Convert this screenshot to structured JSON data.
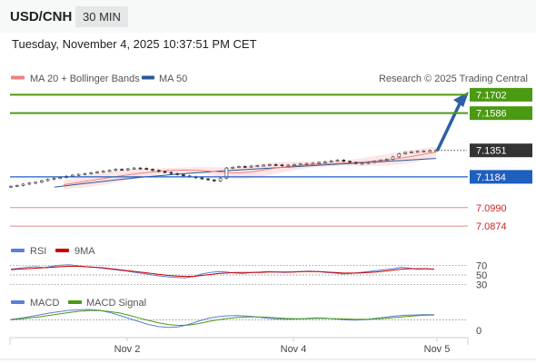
{
  "header": {
    "pair": "USD/CNH",
    "timeframe": "30 MIN"
  },
  "datetime": "Tuesday, November 4, 2025 10:37:51 PM CET",
  "legend": {
    "ma20_bb": "MA 20 + Bollinger Bands",
    "ma50": "MA 50",
    "credit": "Research © 2025 Trading Central"
  },
  "colors": {
    "resistance": "#4a9a12",
    "support": "#1f5fbf",
    "weak_level": "#e88a8a",
    "price": "#333333",
    "arrow": "#2e5fa8",
    "ma20": "#f08080",
    "ma50": "#2b5797",
    "rsi": "#5b7fd6",
    "rsi_ma": "#cc0000",
    "macd": "#5b7fd6",
    "macd_signal": "#4a9a12",
    "bollinger_fill": "#fbe2e2"
  },
  "levels": [
    {
      "label": "7.1702",
      "value": 7.1702,
      "kind": "resistance"
    },
    {
      "label": "7.1586",
      "value": 7.1586,
      "kind": "resistance"
    },
    {
      "label": "7.1351",
      "value": 7.1351,
      "kind": "price"
    },
    {
      "label": "7.1184",
      "value": 7.1184,
      "kind": "support"
    },
    {
      "label": "7.0990",
      "value": 7.099,
      "kind": "weak"
    },
    {
      "label": "7.0874",
      "value": 7.0874,
      "kind": "weak"
    }
  ],
  "rsi_legend": {
    "rsi": "RSI",
    "ma": "9MA"
  },
  "rsi_ticks": [
    "70",
    "50",
    "30"
  ],
  "macd_legend": {
    "macd": "MACD",
    "signal": "MACD Signal"
  },
  "macd_ticks": [
    "0"
  ],
  "chart_data": {
    "type": "line",
    "title": "USD/CNH",
    "x_labels": [
      "Nov 2",
      "Nov 4",
      "Nov 5"
    ],
    "ylim": [
      7.08,
      7.175
    ],
    "series": [
      {
        "name": "USD/CNH",
        "values": [
          7.1125,
          7.113,
          7.1138,
          7.1145,
          7.115,
          7.116,
          7.1168,
          7.1175,
          7.118,
          7.1188,
          7.1195,
          7.12,
          7.1205,
          7.121,
          7.1215,
          7.122,
          7.1225,
          7.1232,
          7.1228,
          7.1235,
          7.124,
          7.1238,
          7.1232,
          7.1225,
          7.1218,
          7.1212,
          7.1205,
          7.1198,
          7.119,
          7.1185,
          7.1178,
          7.1172,
          7.1165,
          7.1158,
          7.1175,
          7.124,
          7.1245,
          7.125,
          7.1248,
          7.1252,
          7.1255,
          7.1258,
          7.1262,
          7.126,
          7.1255,
          7.1258,
          7.1262,
          7.1265,
          7.1268,
          7.127,
          7.1275,
          7.128,
          7.1285,
          7.129,
          7.1282,
          7.1275,
          7.1268,
          7.127,
          7.1275,
          7.1282,
          7.1288,
          7.1295,
          7.131,
          7.133,
          7.1338,
          7.1342,
          7.1345,
          7.1348,
          7.135,
          7.1351
        ]
      },
      {
        "name": "MA 20",
        "values": [
          7.1135,
          7.1142,
          7.115,
          7.1158,
          7.1166,
          7.1174,
          7.1182,
          7.119,
          7.1197,
          7.1204,
          7.121,
          7.1215,
          7.122,
          7.1224,
          7.1226,
          7.1227,
          7.1226,
          7.1224,
          7.122,
          7.1216,
          7.1212,
          7.1209,
          7.121,
          7.1215,
          7.1222,
          7.123,
          7.1238,
          7.1245,
          7.1251,
          7.1256,
          7.126,
          7.1263,
          7.1266,
          7.1268,
          7.127,
          7.1272,
          7.1275,
          7.1278,
          7.1282,
          7.1287,
          7.1292,
          7.1298,
          7.1305,
          7.1313,
          7.1322,
          7.1332,
          7.134
        ]
      },
      {
        "name": "MA 50",
        "values": [
          7.112,
          7.1128,
          7.1136,
          7.1144,
          7.1152,
          7.116,
          7.1168,
          7.1175,
          7.1182,
          7.1188,
          7.1194,
          7.12,
          7.1205,
          7.121,
          7.1215,
          7.122,
          7.1224,
          7.1228,
          7.1232,
          7.1236,
          7.124,
          7.1244,
          7.1248,
          7.1252,
          7.1256,
          7.126,
          7.1264,
          7.1268,
          7.1272,
          7.1276,
          7.128,
          7.1284,
          7.1288,
          7.1292,
          7.1296,
          7.13
        ]
      }
    ],
    "rsi": {
      "ticks": [
        70,
        50,
        30
      ],
      "values": [
        62,
        64,
        66,
        67,
        65,
        68,
        70,
        71,
        69,
        67,
        66,
        64,
        62,
        60,
        58,
        55,
        53,
        50,
        48,
        46,
        45,
        44,
        47,
        52,
        55,
        57,
        56,
        54,
        53,
        55,
        56,
        57,
        56,
        55,
        56,
        57,
        58,
        57,
        55,
        54,
        52,
        53,
        55,
        57,
        59,
        61,
        63,
        66,
        64,
        62,
        63,
        62
      ],
      "ma_values": [
        61,
        62,
        63,
        64,
        65,
        66,
        67,
        68,
        68,
        67,
        66,
        65,
        63,
        61,
        59,
        57,
        55,
        53,
        51,
        49,
        48,
        47,
        47,
        49,
        51,
        53,
        54,
        55,
        55,
        55,
        55,
        56,
        56,
        56,
        56,
        57,
        57,
        57,
        56,
        55,
        54,
        54,
        54,
        55,
        56,
        58,
        60,
        62,
        63,
        63,
        63,
        62
      ]
    },
    "macd": {
      "ticks": [
        0
      ],
      "values": [
        0.2,
        0.6,
        1.2,
        1.8,
        2.4,
        2.9,
        3.3,
        3.5,
        3.6,
        3.3,
        2.6,
        1.6,
        0.5,
        -0.6,
        -1.6,
        -2.3,
        -2.6,
        -2.4,
        -1.6,
        -0.5,
        0.5,
        1.1,
        1.4,
        1.5,
        1.3,
        1,
        0.6,
        0.3,
        0.2,
        0.3,
        0.5,
        0.7,
        0.6,
        0.3,
        0,
        -0.1,
        0.1,
        0.5,
        0.9,
        1.3,
        1.6,
        1.7,
        1.8,
        1.8
      ],
      "signal_values": [
        0.1,
        0.3,
        0.7,
        1.1,
        1.6,
        2.1,
        2.6,
        3,
        3.2,
        3.2,
        2.9,
        2.4,
        1.6,
        0.7,
        -0.2,
        -1,
        -1.6,
        -1.9,
        -1.8,
        -1.3,
        -0.6,
        0,
        0.5,
        0.8,
        1,
        1,
        0.9,
        0.7,
        0.5,
        0.4,
        0.4,
        0.5,
        0.5,
        0.4,
        0.3,
        0.2,
        0.2,
        0.3,
        0.5,
        0.8,
        1.1,
        1.4,
        1.6,
        1.7
      ]
    }
  }
}
